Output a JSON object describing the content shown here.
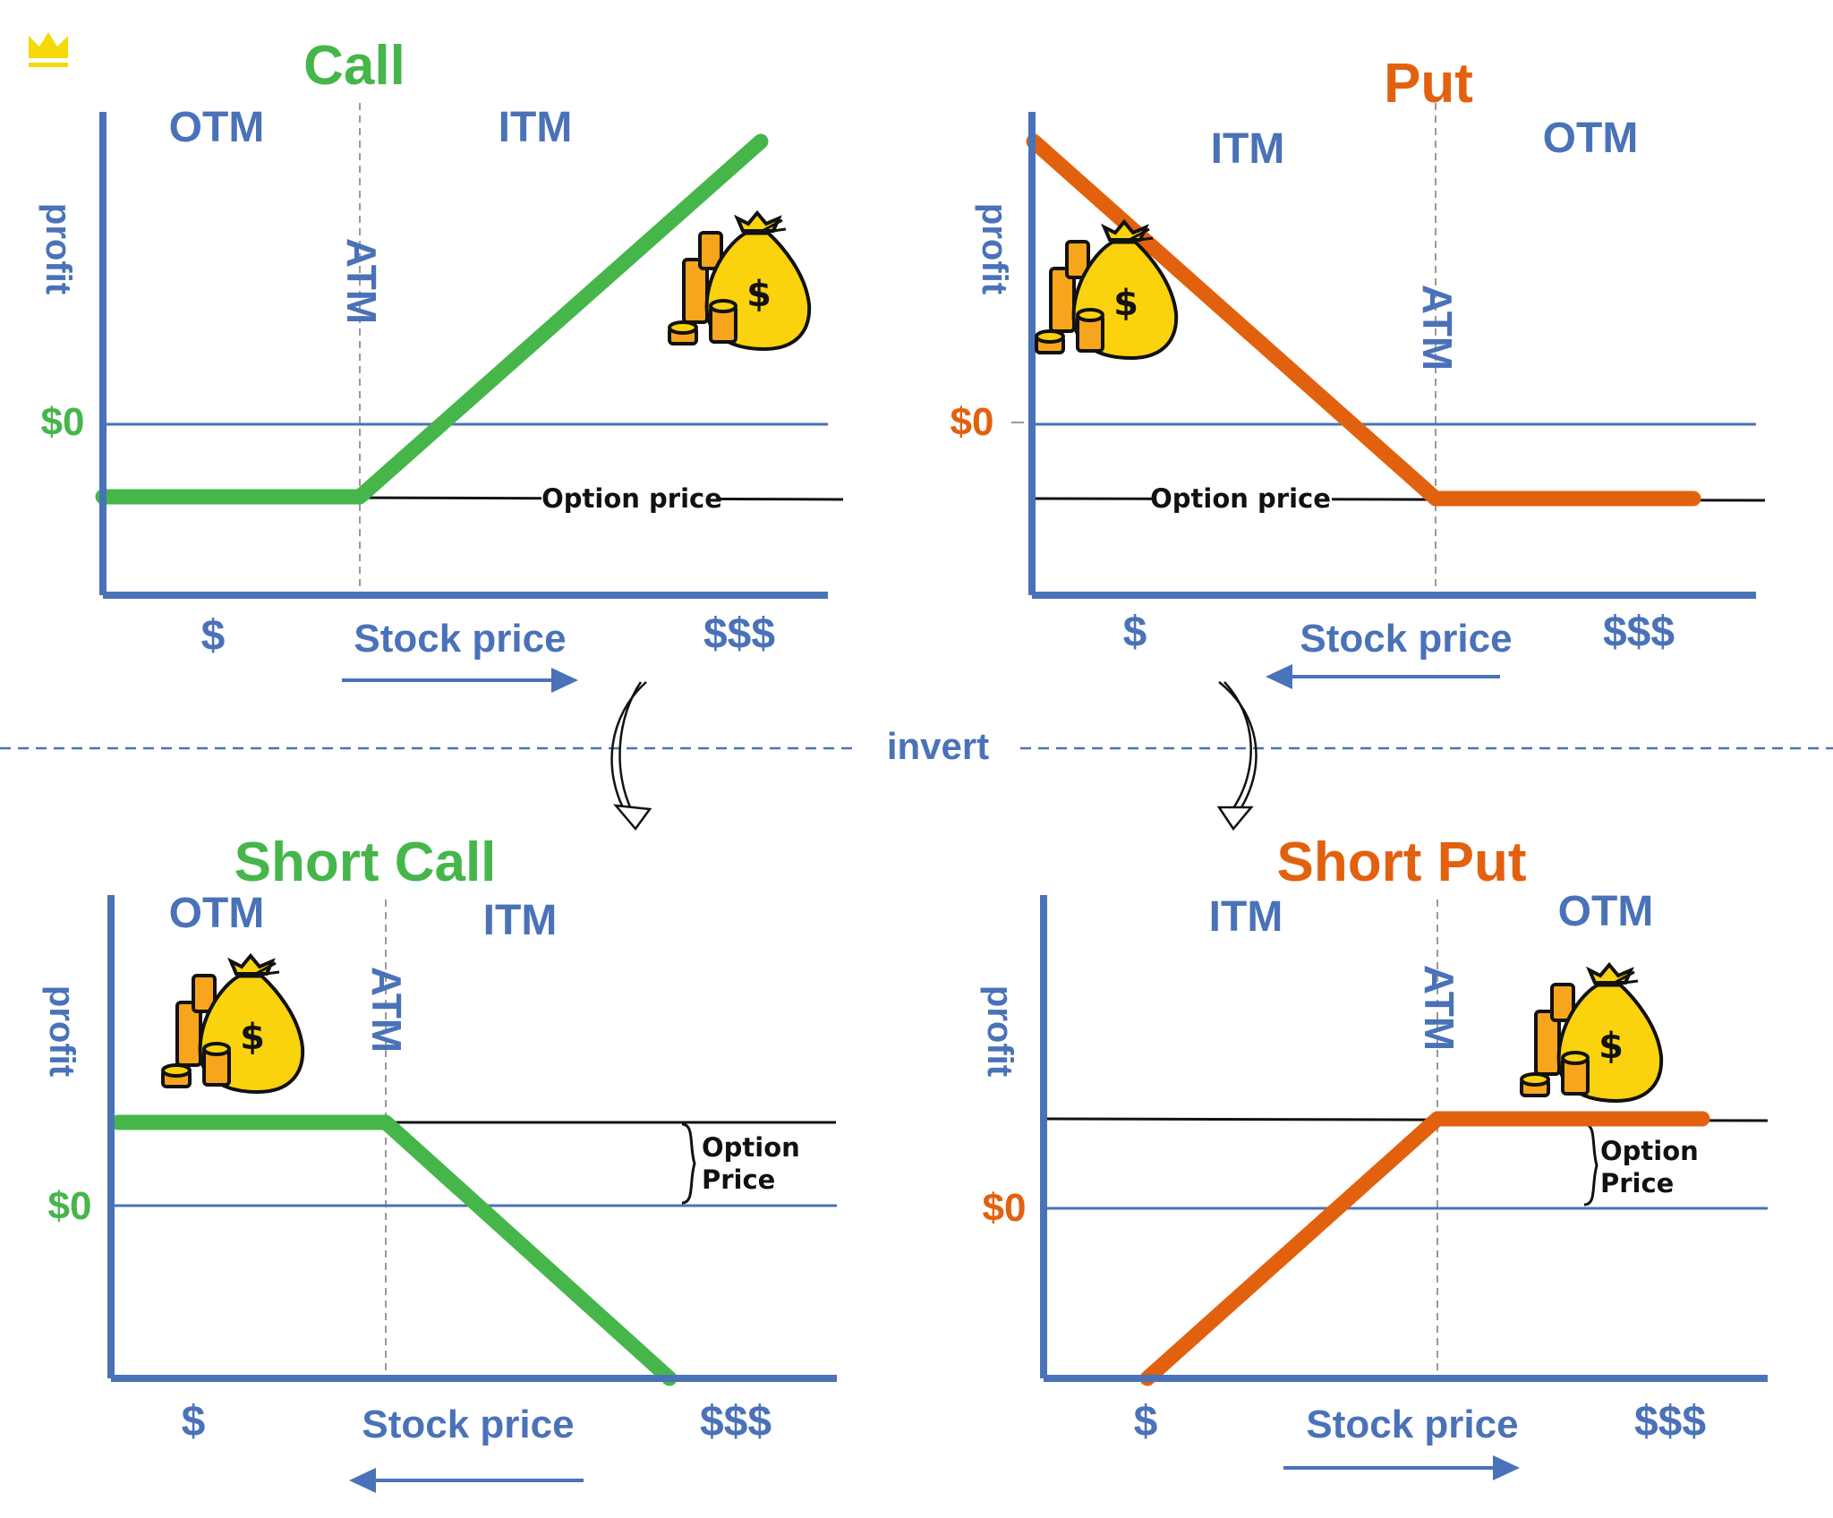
{
  "colors": {
    "axis": "#4a72b8",
    "call": "#46b64b",
    "put": "#e2610f",
    "ink": "#111111",
    "coin": "#f7a51c",
    "bag": "#fad20e"
  },
  "icons": [
    "crown-icon",
    "money-bag-icon",
    "curved-arrow-icon"
  ],
  "divider_label": "invert",
  "panels": {
    "call": {
      "title": "Call",
      "left_zone": "OTM",
      "right_zone": "ITM",
      "atm": "ATM",
      "ylabel": "profit",
      "zero": "$0",
      "x_low": "$",
      "xlabel": "Stock price",
      "x_high": "$$$",
      "premium_label": "Option price",
      "arrow": "right"
    },
    "put": {
      "title": "Put",
      "left_zone": "ITM",
      "right_zone": "OTM",
      "atm": "ATM",
      "ylabel": "profit",
      "zero": "$0",
      "x_low": "$",
      "xlabel": "Stock price",
      "x_high": "$$$",
      "premium_label": "Option price",
      "arrow": "left"
    },
    "short_call": {
      "title": "Short Call",
      "left_zone": "OTM",
      "right_zone": "ITM",
      "atm": "ATM",
      "ylabel": "profit",
      "zero": "$0",
      "x_low": "$",
      "xlabel": "Stock price",
      "x_high": "$$$",
      "premium_label_1": "Option",
      "premium_label_2": "Price",
      "arrow": "left"
    },
    "short_put": {
      "title": "Short Put",
      "left_zone": "ITM",
      "right_zone": "OTM",
      "atm": "ATM",
      "ylabel": "profit",
      "zero": "$0",
      "x_low": "$",
      "xlabel": "Stock price",
      "x_high": "$$$",
      "premium_label_1": "Option",
      "premium_label_2": "Price",
      "arrow": "right"
    }
  },
  "bag_symbol": "$"
}
